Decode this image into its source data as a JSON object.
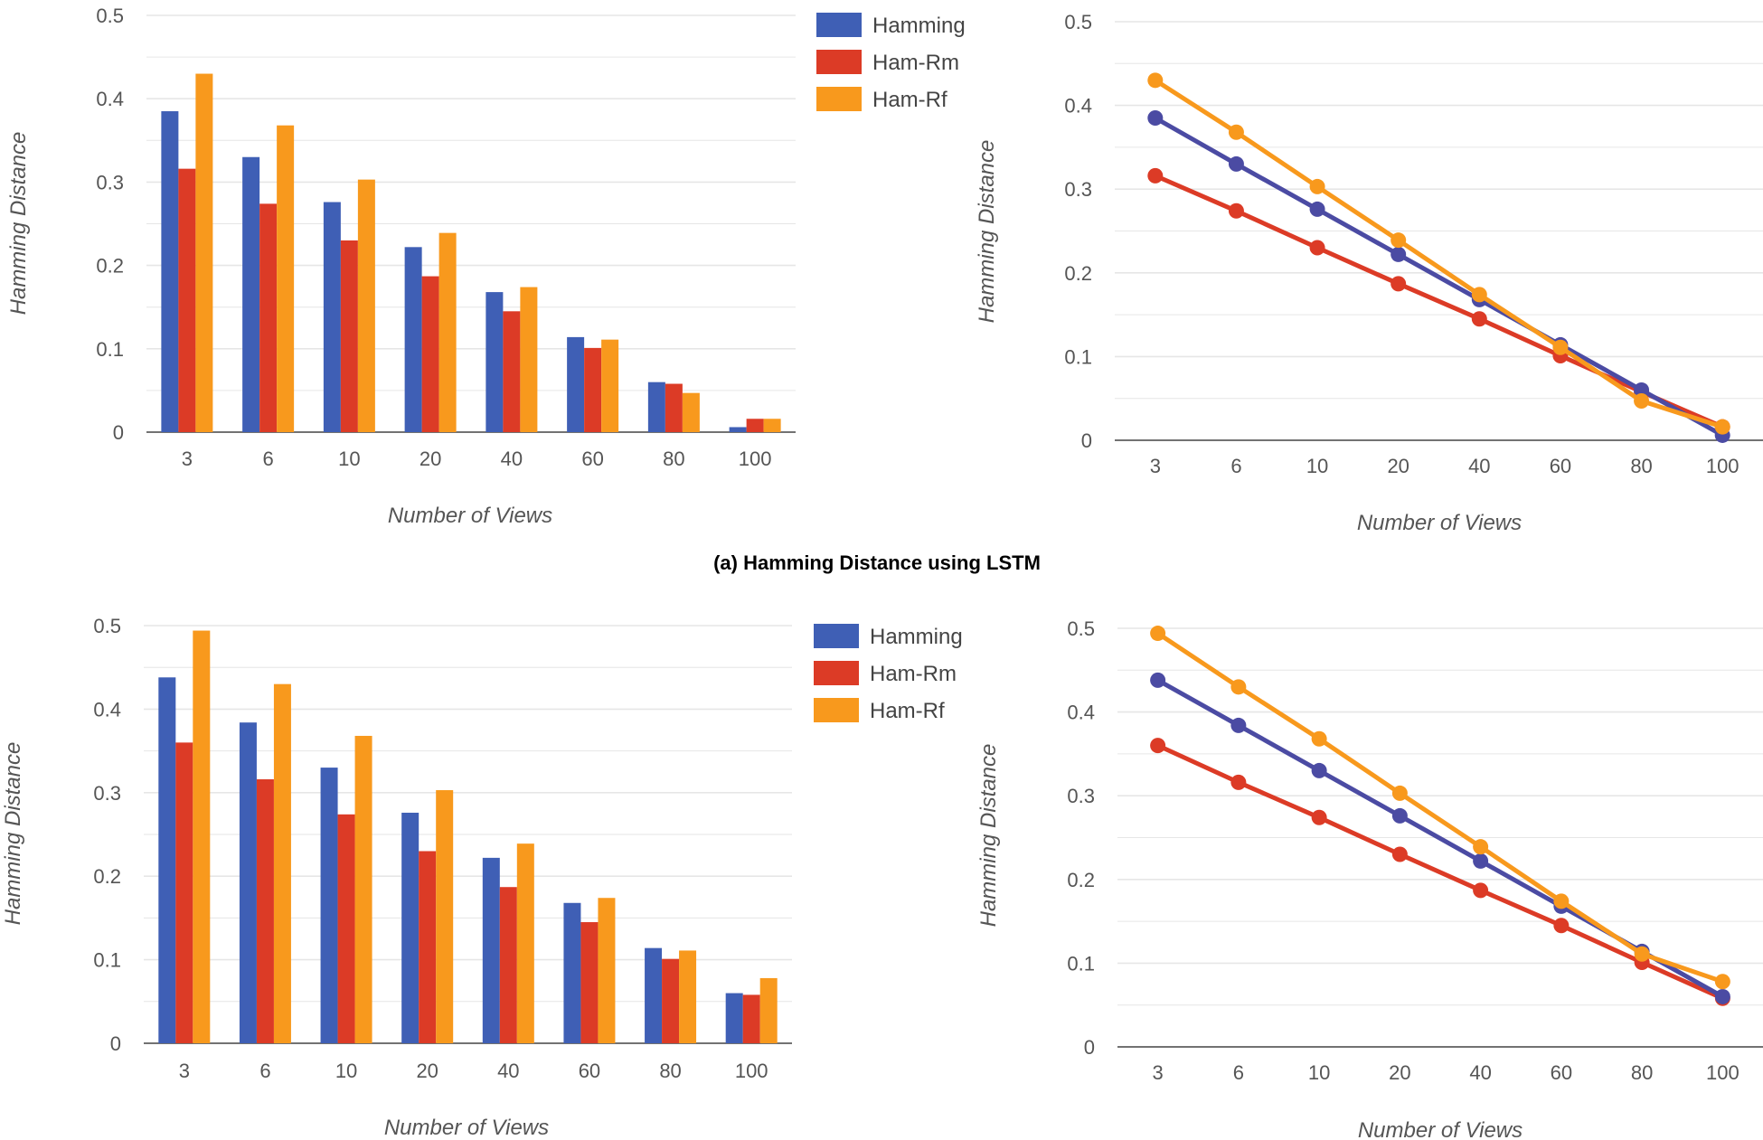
{
  "chart_data": [
    {
      "id": "lstm-bar",
      "type": "bar",
      "categories": [
        "3",
        "6",
        "10",
        "20",
        "40",
        "60",
        "80",
        "100"
      ],
      "series": [
        {
          "name": "Hamming",
          "color": "#3f5fb5",
          "values": [
            0.385,
            0.33,
            0.276,
            0.222,
            0.168,
            0.114,
            0.06,
            0.006
          ]
        },
        {
          "name": "Ham-Rm",
          "color": "#dc3b26",
          "values": [
            0.316,
            0.274,
            0.23,
            0.187,
            0.145,
            0.101,
            0.058,
            0.016
          ]
        },
        {
          "name": "Ham-Rf",
          "color": "#f8991d",
          "values": [
            0.43,
            0.368,
            0.303,
            0.239,
            0.174,
            0.111,
            0.047,
            0.016
          ]
        }
      ],
      "xlabel": "Number of Views",
      "ylabel": "Hamming Distance",
      "ylim": [
        0,
        0.5
      ],
      "yticks": [
        "0",
        "0.1",
        "0.2",
        "0.3",
        "0.4",
        "0.5"
      ],
      "legend": "top-right",
      "grid": true
    },
    {
      "id": "lstm-line",
      "type": "line",
      "categories": [
        "3",
        "6",
        "10",
        "20",
        "40",
        "60",
        "80",
        "100"
      ],
      "series": [
        {
          "name": "Hamming",
          "color": "#4b4ba3",
          "values": [
            0.385,
            0.33,
            0.276,
            0.222,
            0.168,
            0.114,
            0.06,
            0.006
          ]
        },
        {
          "name": "Ham-Rm",
          "color": "#dc3b26",
          "values": [
            0.316,
            0.274,
            0.23,
            0.187,
            0.145,
            0.101,
            0.058,
            0.016
          ]
        },
        {
          "name": "Ham-Rf",
          "color": "#f8991d",
          "values": [
            0.43,
            0.368,
            0.303,
            0.239,
            0.174,
            0.111,
            0.047,
            0.016
          ]
        }
      ],
      "xlabel": "Number of Views",
      "ylabel": "Hamming Distance",
      "ylim": [
        0,
        0.5
      ],
      "yticks": [
        "0",
        "0.1",
        "0.2",
        "0.3",
        "0.4",
        "0.5"
      ],
      "grid": true
    },
    {
      "id": "bottom-bar",
      "type": "bar",
      "categories": [
        "3",
        "6",
        "10",
        "20",
        "40",
        "60",
        "80",
        "100"
      ],
      "series": [
        {
          "name": "Hamming",
          "color": "#3f5fb5",
          "values": [
            0.438,
            0.384,
            0.33,
            0.276,
            0.222,
            0.168,
            0.114,
            0.06
          ]
        },
        {
          "name": "Ham-Rm",
          "color": "#dc3b26",
          "values": [
            0.36,
            0.316,
            0.274,
            0.23,
            0.187,
            0.145,
            0.101,
            0.058
          ]
        },
        {
          "name": "Ham-Rf",
          "color": "#f8991d",
          "values": [
            0.494,
            0.43,
            0.368,
            0.303,
            0.239,
            0.174,
            0.111,
            0.078
          ]
        }
      ],
      "xlabel": "Number of Views",
      "ylabel": "Hamming Distance",
      "ylim": [
        0,
        0.5
      ],
      "yticks": [
        "0",
        "0.1",
        "0.2",
        "0.3",
        "0.4",
        "0.5"
      ],
      "legend": "top-right",
      "grid": true
    },
    {
      "id": "bottom-line",
      "type": "line",
      "categories": [
        "3",
        "6",
        "10",
        "20",
        "40",
        "60",
        "80",
        "100"
      ],
      "series": [
        {
          "name": "Hamming",
          "color": "#4b4ba3",
          "values": [
            0.438,
            0.384,
            0.33,
            0.276,
            0.222,
            0.168,
            0.114,
            0.06
          ]
        },
        {
          "name": "Ham-Rm",
          "color": "#dc3b26",
          "values": [
            0.36,
            0.316,
            0.274,
            0.23,
            0.187,
            0.145,
            0.101,
            0.058
          ]
        },
        {
          "name": "Ham-Rf",
          "color": "#f8991d",
          "values": [
            0.494,
            0.43,
            0.368,
            0.303,
            0.239,
            0.174,
            0.111,
            0.078
          ]
        }
      ],
      "xlabel": "Number of Views",
      "ylabel": "Hamming Distance",
      "ylim": [
        0,
        0.5
      ],
      "yticks": [
        "0",
        "0.1",
        "0.2",
        "0.3",
        "0.4",
        "0.5"
      ],
      "grid": true
    }
  ],
  "caption": "(a) Hamming Distance using LSTM",
  "colors": {
    "grid": "#e6e6e6",
    "axis": "#444444",
    "text": "#555555"
  }
}
